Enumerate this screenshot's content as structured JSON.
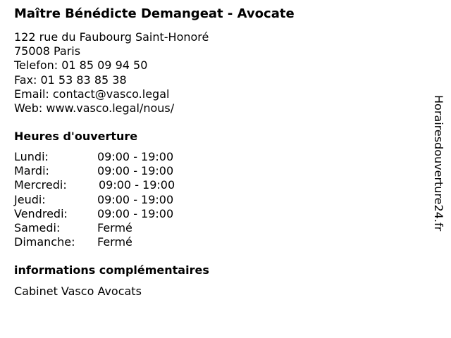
{
  "title": "Maître Bénédicte Demangeat - Avocate",
  "address": {
    "street": "122 rue du Faubourg Saint-Honoré",
    "city": "75008 Paris",
    "phone": "Telefon: 01 85 09 94 50",
    "fax": "Fax: 01 53 83 85 38",
    "email": "Email: contact@vasco.legal",
    "web": "Web: www.vasco.legal/nous/"
  },
  "hours_heading": "Heures d'ouverture",
  "hours": [
    {
      "day": "Lundi:",
      "time": "09:00 - 19:00"
    },
    {
      "day": "Mardi:",
      "time": "09:00 - 19:00"
    },
    {
      "day": "Mercredi:",
      "time": "09:00 - 19:00"
    },
    {
      "day": "Jeudi:",
      "time": "09:00 - 19:00"
    },
    {
      "day": "Vendredi:",
      "time": "09:00 - 19:00"
    },
    {
      "day": "Samedi:",
      "time": "Fermé"
    },
    {
      "day": "Dimanche:",
      "time": "Fermé"
    }
  ],
  "extra_heading": "informations complémentaires",
  "extra_text": "Cabinet Vasco Avocats",
  "watermark": "Horairesdouverture24.fr"
}
